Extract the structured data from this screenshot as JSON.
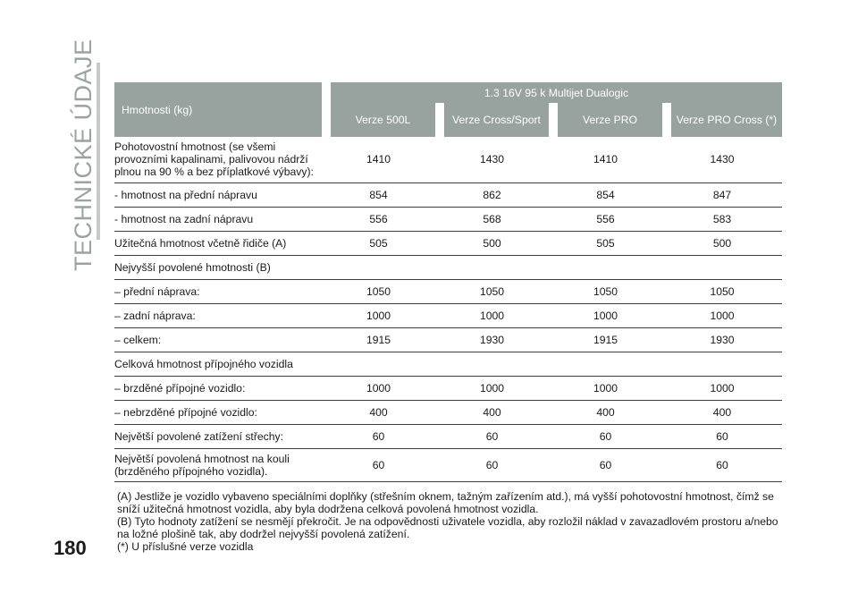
{
  "section_title": "TECHNICKÉ ÚDAJE",
  "page_number": "180",
  "table": {
    "row_header": "Hmotnosti (kg)",
    "engine_header": "1.3 16V 95 k Multijet Dualogic",
    "columns": [
      "Verze 500L",
      "Verze Cross/Sport",
      "Verze PRO",
      "Verze PRO Cross (*)"
    ],
    "rows": [
      {
        "label": "Pohotovostní hmotnost (se všemi provozními kapalinami, palivovou nádrží plnou na 90 % a bez příplatkové výbavy):",
        "values": [
          "1410",
          "1430",
          "1410",
          "1430"
        ]
      },
      {
        "label": "- hmotnost na přední nápravu",
        "values": [
          "854",
          "862",
          "854",
          "847"
        ]
      },
      {
        "label": "- hmotnost na zadní nápravu",
        "values": [
          "556",
          "568",
          "556",
          "583"
        ]
      },
      {
        "label": "Užitečná hmotnost včetně řidiče (A)",
        "values": [
          "505",
          "500",
          "505",
          "500"
        ]
      },
      {
        "label": "Nejvyšší povolené hmotnosti (B)",
        "values": [
          "",
          "",
          "",
          ""
        ]
      },
      {
        "label": "– přední náprava:",
        "values": [
          "1050",
          "1050",
          "1050",
          "1050"
        ]
      },
      {
        "label": "– zadní náprava:",
        "values": [
          "1000",
          "1000",
          "1000",
          "1000"
        ]
      },
      {
        "label": "– celkem:",
        "values": [
          "1915",
          "1930",
          "1915",
          "1930"
        ]
      },
      {
        "label": "Celková hmotnost přípojného vozidla",
        "values": [
          "",
          "",
          "",
          ""
        ]
      },
      {
        "label": "– brzděné přípojné vozidlo:",
        "values": [
          "1000",
          "1000",
          "1000",
          "1000"
        ]
      },
      {
        "label": "– nebrzděné přípojné vozidlo:",
        "values": [
          "400",
          "400",
          "400",
          "400"
        ]
      },
      {
        "label": "Největší povolené zatížení střechy:",
        "values": [
          "60",
          "60",
          "60",
          "60"
        ]
      },
      {
        "label": "Největší povolená hmotnost na kouli (brzděného přípojného vozidla).",
        "values": [
          "60",
          "60",
          "60",
          "60"
        ]
      }
    ]
  },
  "footnotes": [
    "(A) Jestliže je vozidlo vybaveno speciálními doplňky (střešním oknem, tažným zařízením atd.), má vyšší pohotovostní hmotnost, čímž se sníží užitečná hmotnost vozidla, aby byla dodržena celková povolená hmotnost vozidla.",
    "(B) Tyto hodnoty zatížení se nesmějí překročit. Je na odpovědnosti uživatele vozidla, aby rozložil náklad v zavazadlovém prostoru a/nebo na ložné plošině tak, aby dodržel nejvyšší povolená zatížení.",
    "(*) U příslušné verze vozidla"
  ]
}
